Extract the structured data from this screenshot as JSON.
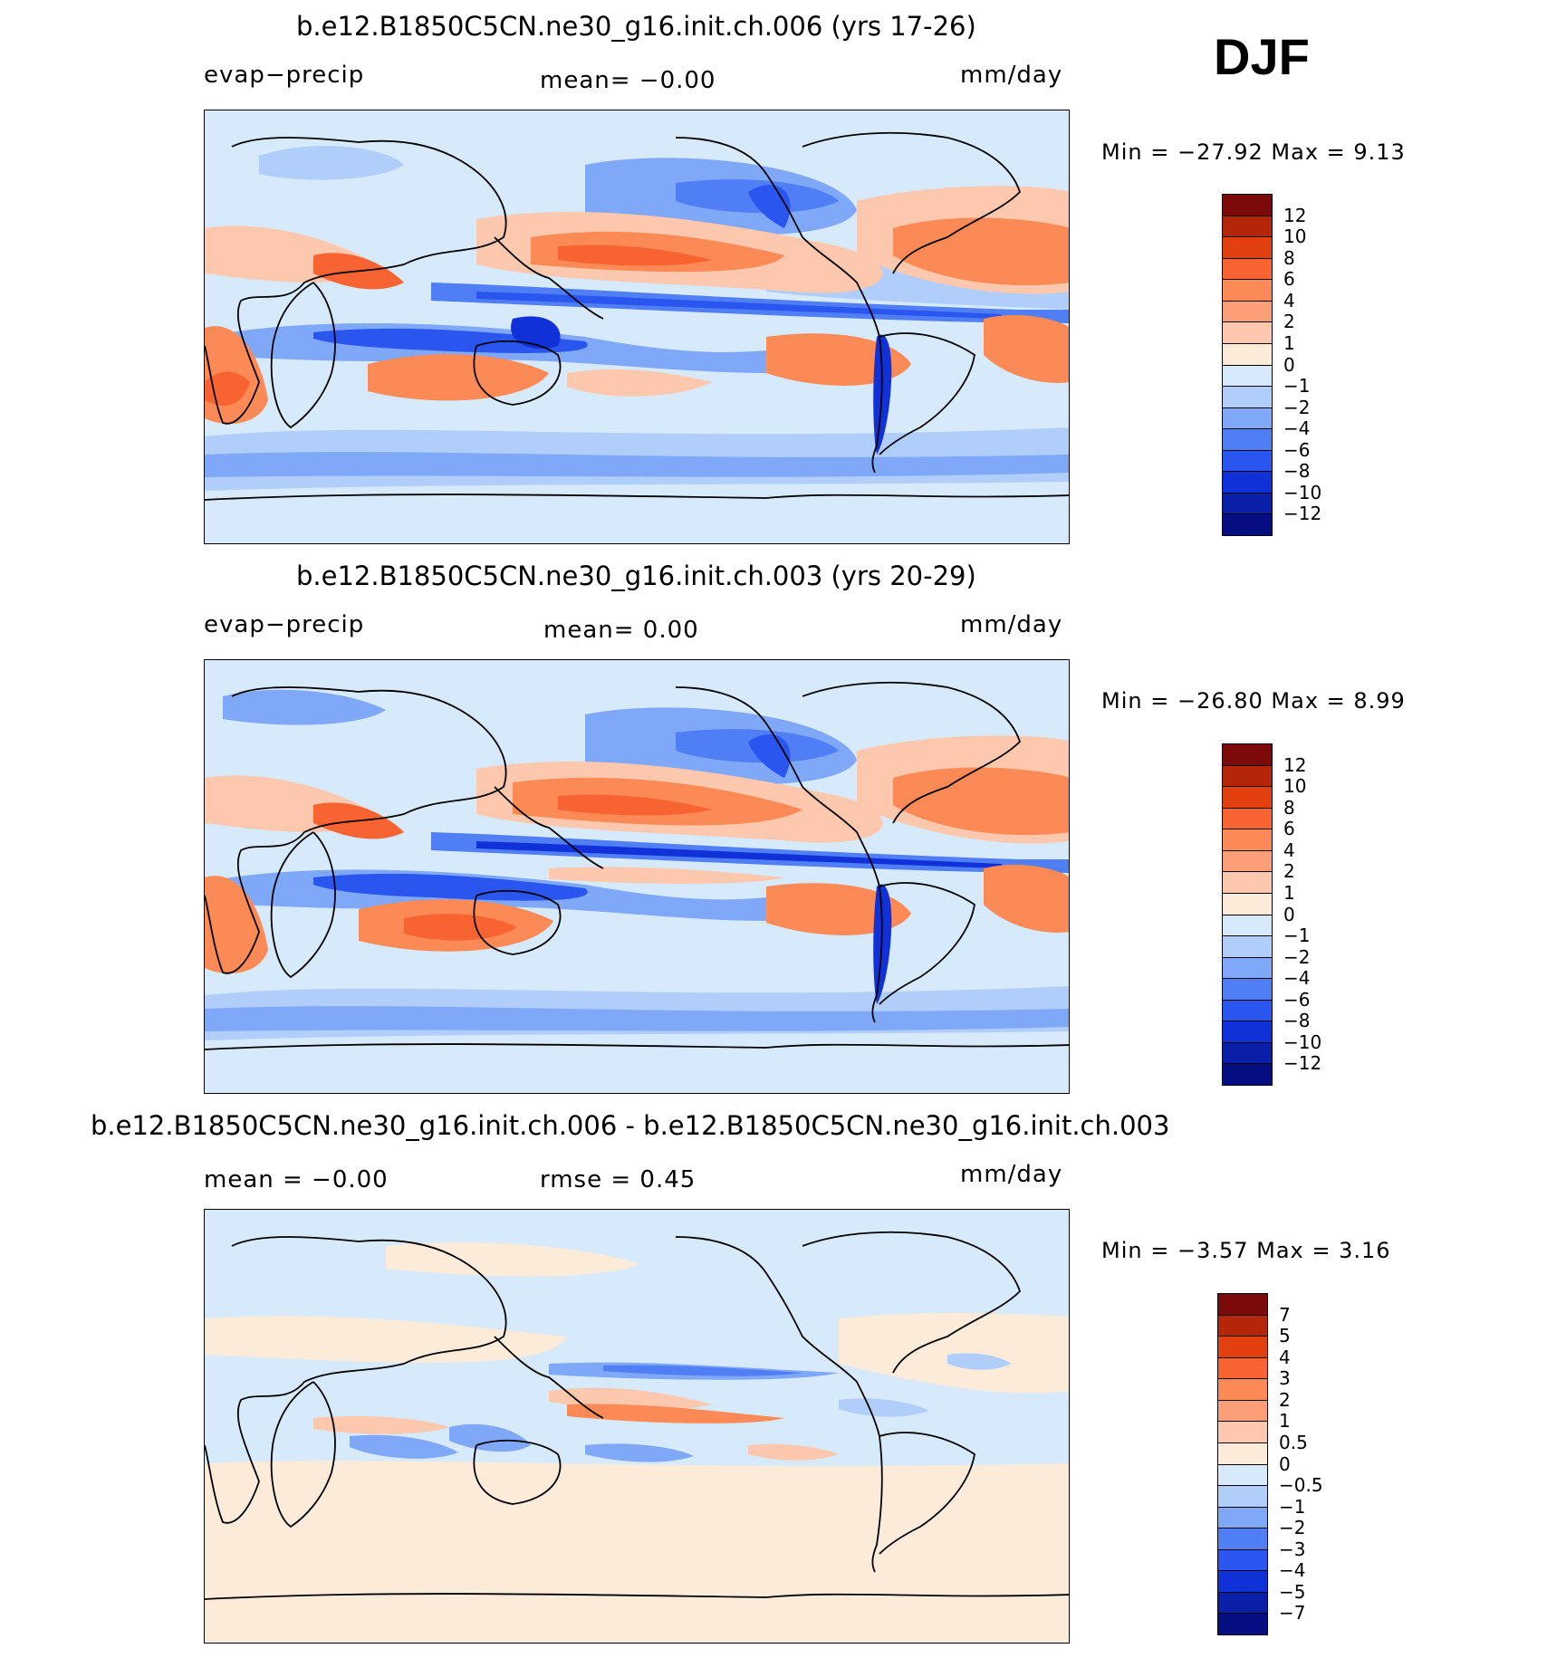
{
  "season": "DJF",
  "panels": [
    {
      "id": "panel-1",
      "title": "b.e12.B1850C5CN.ne30_g16.init.ch.006 (yrs 17-26)",
      "left_label": "evap−precip",
      "center_label": "mean=  −0.00",
      "units": "mm/day",
      "minmax": "Min = −27.92  Max =   9.13",
      "levels": [
        "12",
        "10",
        "8",
        "6",
        "4",
        "2",
        "1",
        "0",
        "−1",
        "−2",
        "−4",
        "−6",
        "−8",
        "−10",
        "−12"
      ]
    },
    {
      "id": "panel-2",
      "title": "b.e12.B1850C5CN.ne30_g16.init.ch.003 (yrs 20-29)",
      "left_label": "evap−precip",
      "center_label": "mean=    0.00",
      "units": "mm/day",
      "minmax": "Min = −26.80  Max =   8.99",
      "levels": [
        "12",
        "10",
        "8",
        "6",
        "4",
        "2",
        "1",
        "0",
        "−1",
        "−2",
        "−4",
        "−6",
        "−8",
        "−10",
        "−12"
      ]
    },
    {
      "id": "panel-3",
      "title": "b.e12.B1850C5CN.ne30_g16.init.ch.006 - b.e12.B1850C5CN.ne30_g16.init.ch.003",
      "left_label": "mean =  −0.00",
      "center_label": "rmse =    0.45",
      "units": "mm/day",
      "minmax": "Min =   −3.57  Max =   3.16",
      "levels": [
        "7",
        "5",
        "4",
        "3",
        "2",
        "1",
        "0.5",
        "0",
        "−0.5",
        "−1",
        "−2",
        "−3",
        "−4",
        "−5",
        "−7"
      ]
    }
  ],
  "colorbar_colors": [
    "#7d0a0a",
    "#b52508",
    "#e2410f",
    "#f86332",
    "#fb8a57",
    "#fdc8ad",
    "#fdebda",
    "#d6eafb",
    "#b1cefa",
    "#7fa8f8",
    "#4f7ef5",
    "#2b55ef",
    "#1131d8",
    "#0a1fa8",
    "#050e80"
  ]
}
